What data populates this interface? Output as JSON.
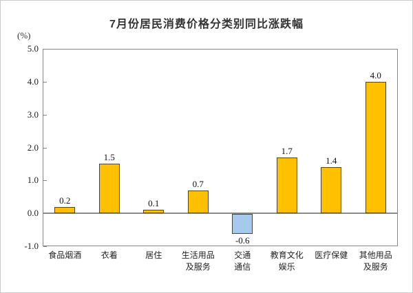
{
  "chart": {
    "title": "7月份居民消费价格分类别同比涨跌幅",
    "unit_label": "(%)"
  },
  "chart_data": {
    "type": "bar",
    "title": "7月份居民消费价格分类别同比涨跌幅",
    "xlabel": "",
    "ylabel": "(%)",
    "categories": [
      "食品烟酒",
      "衣着",
      "居住",
      "生活用品及服务",
      "交通通信",
      "教育文化娱乐",
      "医疗保健",
      "其他用品及服务"
    ],
    "category_label_lines": [
      [
        "食品烟酒"
      ],
      [
        "衣着"
      ],
      [
        "居住"
      ],
      [
        "生活用品",
        "及服务"
      ],
      [
        "交通",
        "通信"
      ],
      [
        "教育文化",
        "娱乐"
      ],
      [
        "医疗保健"
      ],
      [
        "其他用品",
        "及服务"
      ]
    ],
    "values": [
      0.2,
      1.5,
      0.1,
      0.7,
      -0.6,
      1.7,
      1.4,
      4.0
    ],
    "data_labels": [
      "0.2",
      "1.5",
      "0.1",
      "0.7",
      "-0.6",
      "1.7",
      "1.4",
      "4.0"
    ],
    "ylim": [
      -1.0,
      5.0
    ],
    "yticks": [
      5.0,
      4.0,
      3.0,
      2.0,
      1.0,
      0.0,
      -1.0
    ],
    "grid": false,
    "legend": false,
    "colors": {
      "positive_bar": "#FFC000",
      "negative_bar": "#A6CAEC",
      "bar_border": "#4d4430",
      "axis": "#848484",
      "text": "#222222"
    }
  }
}
